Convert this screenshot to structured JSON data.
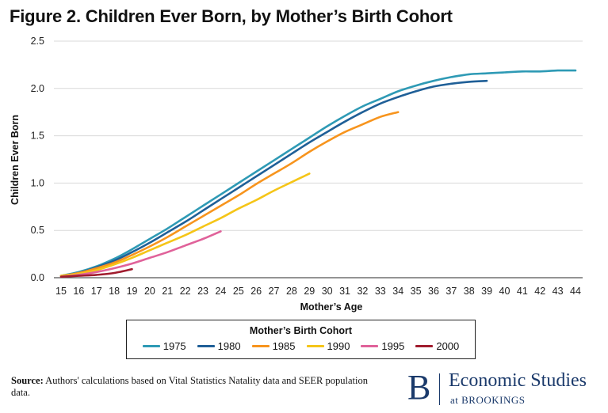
{
  "title": "Figure 2. Children Ever Born, by Mother’s Birth Cohort",
  "source": {
    "label": "Source:",
    "text": " Authors' calculations based on Vital Statistics Natality data and SEER population data."
  },
  "brand": {
    "mark": "B",
    "name": "Economic Studies",
    "sub": "at BROOKINGS"
  },
  "chart_data": {
    "type": "line",
    "title": "Figure 2. Children Ever Born, by Mother’s Birth Cohort",
    "xlabel": "Mother’s Age",
    "ylabel": "Children Ever Born",
    "xlim": [
      15,
      44
    ],
    "ylim": [
      0,
      2.5
    ],
    "xticks": [
      15,
      16,
      17,
      18,
      19,
      20,
      21,
      22,
      23,
      24,
      25,
      26,
      27,
      28,
      29,
      30,
      31,
      32,
      33,
      34,
      35,
      36,
      37,
      38,
      39,
      40,
      41,
      42,
      43,
      44
    ],
    "yticks": [
      0.0,
      0.5,
      1.0,
      1.5,
      2.0,
      2.5
    ],
    "ytick_labels": [
      "0.0",
      "0.5",
      "1.0",
      "1.5",
      "2.0",
      "2.5"
    ],
    "grid": "horizontal",
    "legend_title": "Mother’s Birth Cohort",
    "legend_position": "bottom",
    "series": [
      {
        "name": "1975",
        "color": "#2e9ab5",
        "x": [
          15,
          16,
          17,
          18,
          19,
          20,
          21,
          22,
          23,
          24,
          25,
          26,
          27,
          28,
          29,
          30,
          31,
          32,
          33,
          34,
          35,
          36,
          37,
          38,
          39,
          40,
          41,
          42,
          43,
          44
        ],
        "values": [
          0.02,
          0.06,
          0.12,
          0.2,
          0.3,
          0.41,
          0.52,
          0.64,
          0.76,
          0.88,
          1.0,
          1.12,
          1.24,
          1.36,
          1.48,
          1.6,
          1.71,
          1.81,
          1.89,
          1.97,
          2.03,
          2.08,
          2.12,
          2.15,
          2.16,
          2.17,
          2.18,
          2.18,
          2.19,
          2.19
        ]
      },
      {
        "name": "1980",
        "color": "#1f5f97",
        "x": [
          15,
          16,
          17,
          18,
          19,
          20,
          21,
          22,
          23,
          24,
          25,
          26,
          27,
          28,
          29,
          30,
          31,
          32,
          33,
          34,
          35,
          36,
          37,
          38,
          39
        ],
        "values": [
          0.02,
          0.05,
          0.11,
          0.18,
          0.27,
          0.37,
          0.48,
          0.59,
          0.71,
          0.83,
          0.95,
          1.07,
          1.19,
          1.31,
          1.43,
          1.54,
          1.65,
          1.75,
          1.84,
          1.91,
          1.97,
          2.02,
          2.05,
          2.07,
          2.08
        ]
      },
      {
        "name": "1985",
        "color": "#f7941d",
        "x": [
          15,
          16,
          17,
          18,
          19,
          20,
          21,
          22,
          23,
          24,
          25,
          26,
          27,
          28,
          29,
          30,
          31,
          32,
          33,
          34
        ],
        "values": [
          0.02,
          0.05,
          0.1,
          0.16,
          0.24,
          0.33,
          0.43,
          0.54,
          0.65,
          0.76,
          0.87,
          0.99,
          1.1,
          1.21,
          1.33,
          1.44,
          1.54,
          1.62,
          1.7,
          1.75
        ]
      },
      {
        "name": "1990",
        "color": "#f5c518",
        "x": [
          15,
          16,
          17,
          18,
          19,
          20,
          21,
          22,
          23,
          24,
          25,
          26,
          27,
          28,
          29
        ],
        "values": [
          0.02,
          0.04,
          0.08,
          0.14,
          0.21,
          0.29,
          0.37,
          0.45,
          0.54,
          0.63,
          0.73,
          0.82,
          0.92,
          1.01,
          1.1
        ]
      },
      {
        "name": "1995",
        "color": "#e0629a",
        "x": [
          15,
          16,
          17,
          18,
          19,
          20,
          21,
          22,
          23,
          24
        ],
        "values": [
          0.01,
          0.03,
          0.06,
          0.1,
          0.15,
          0.21,
          0.27,
          0.34,
          0.41,
          0.49
        ]
      },
      {
        "name": "2000",
        "color": "#a01c2e",
        "x": [
          15,
          16,
          17,
          18,
          19
        ],
        "values": [
          0.01,
          0.02,
          0.03,
          0.05,
          0.09
        ]
      }
    ]
  }
}
